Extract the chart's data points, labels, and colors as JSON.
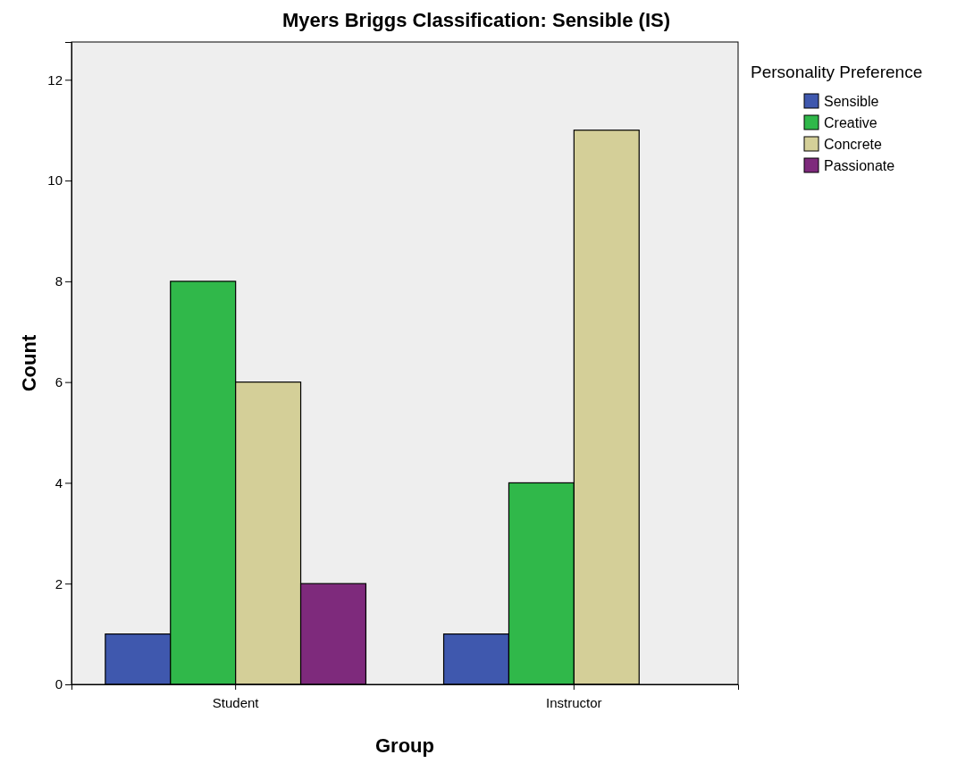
{
  "chart_data": {
    "type": "bar",
    "title": "Myers Briggs Classification: Sensible  (IS)",
    "xlabel": "Group",
    "ylabel": "Count",
    "legend_title": "Personality Preference",
    "legend": "right",
    "grid": false,
    "categories": [
      "Student",
      "Instructor"
    ],
    "series": [
      {
        "name": "Sensible",
        "color": "#3f58ae",
        "values": [
          1,
          1
        ]
      },
      {
        "name": "Creative",
        "color": "#30b84a",
        "values": [
          8,
          4
        ]
      },
      {
        "name": "Concrete",
        "color": "#d4cf98",
        "values": [
          6,
          11
        ]
      },
      {
        "name": "Passionate",
        "color": "#7e2a7c",
        "values": [
          2,
          null
        ]
      }
    ],
    "ylim": [
      0,
      12.75
    ],
    "yticks": [
      0,
      2,
      4,
      6,
      8,
      10,
      12
    ]
  }
}
